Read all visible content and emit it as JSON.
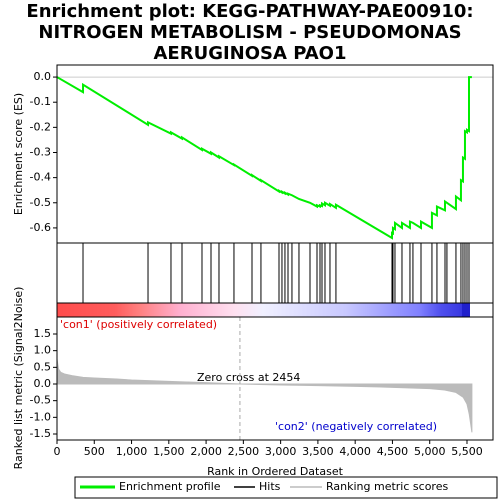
{
  "chart_data": {
    "type": "line",
    "title": [
      "Enrichment plot: KEGG-PATHWAY-PAE00910:",
      "NITROGEN METABOLISM - PSEUDOMONAS",
      "AERUGINOSA PAO1"
    ],
    "xlabel": "Rank in Ordered Dataset",
    "xlim": [
      0,
      5849
    ],
    "xticks": [
      0,
      500,
      {
        "value": 1000,
        "label": "1,000"
      },
      {
        "value": 1500,
        "label": "1,500"
      },
      {
        "value": 2000,
        "label": "2,000"
      },
      {
        "value": 2500,
        "label": "2,500"
      },
      {
        "value": 3000,
        "label": "3,000"
      },
      {
        "value": 3500,
        "label": "3,500"
      },
      {
        "value": 4000,
        "label": "4,000"
      },
      {
        "value": 4500,
        "label": "4,500"
      },
      {
        "value": 5000,
        "label": "5,000"
      },
      {
        "value": 5500,
        "label": "5,500"
      }
    ],
    "es": {
      "ylabel": "Enrichment score (ES)",
      "ylim": [
        -0.66,
        0.048
      ],
      "yticks": [
        {
          "value": 0,
          "label": "0.0"
        },
        -0.1,
        -0.2,
        -0.3,
        -0.4,
        -0.5,
        -0.6
      ],
      "color": "#00ee00",
      "x": [
        0,
        349,
        349,
        1221,
        1221,
        1529,
        1529,
        1677,
        1677,
        1945,
        1945,
        2066,
        2066,
        2173,
        2173,
        2374,
        2374,
        2616,
        2616,
        2736,
        2736,
        2978,
        2978,
        3018,
        3018,
        3058,
        3058,
        3099,
        3099,
        3152,
        3246,
        3394,
        3488,
        3488,
        3528,
        3528,
        3555,
        3555,
        3595,
        3595,
        3662,
        3662,
        3742,
        3742,
        4494,
        4494,
        4507,
        4507,
        4534,
        4534,
        4628,
        4628,
        4735,
        4735,
        4775,
        4883,
        4883,
        5030,
        5030,
        5097,
        5097,
        5205,
        5205,
        5231,
        5352,
        5352,
        5419,
        5419,
        5446,
        5446,
        5473,
        5473,
        5500,
        5500,
        5527,
        5527,
        5566
      ],
      "values": [
        0,
        -0.06,
        -0.03,
        -0.19,
        -0.18,
        -0.225,
        -0.22,
        -0.245,
        -0.24,
        -0.29,
        -0.285,
        -0.305,
        -0.3,
        -0.32,
        -0.315,
        -0.35,
        -0.348,
        -0.393,
        -0.39,
        -0.413,
        -0.41,
        -0.455,
        -0.452,
        -0.459,
        -0.456,
        -0.463,
        -0.46,
        -0.467,
        -0.464,
        -0.47,
        -0.485,
        -0.5,
        -0.515,
        -0.51,
        -0.515,
        -0.51,
        -0.513,
        -0.503,
        -0.51,
        -0.5,
        -0.512,
        -0.505,
        -0.52,
        -0.508,
        -0.64,
        -0.62,
        -0.622,
        -0.6,
        -0.605,
        -0.58,
        -0.6,
        -0.58,
        -0.6,
        -0.575,
        -0.58,
        -0.6,
        -0.575,
        -0.6,
        -0.54,
        -0.55,
        -0.515,
        -0.53,
        -0.495,
        -0.5,
        -0.525,
        -0.475,
        -0.49,
        -0.41,
        -0.415,
        -0.32,
        -0.325,
        -0.215,
        -0.22,
        -0.21,
        -0.215,
        0.0,
        0.0
      ]
    },
    "hits": [
      349,
      1221,
      1529,
      1677,
      1945,
      2066,
      2173,
      2374,
      2616,
      2736,
      2978,
      3018,
      3058,
      3099,
      3152,
      3246,
      3394,
      3488,
      3528,
      3555,
      3595,
      3662,
      3742,
      4494,
      4507,
      4534,
      4628,
      4735,
      4775,
      4883,
      5030,
      5097,
      5205,
      5231,
      5352,
      5419,
      5446,
      5473,
      5500,
      5527
    ],
    "metric": {
      "ylabel": "Ranked list metric (Signal2Noise)",
      "ylim": [
        -1.68,
        2.01
      ],
      "yticks": [
        1.5,
        {
          "value": 1,
          "label": "1.0"
        },
        0.5,
        {
          "value": 0,
          "label": "0.0"
        },
        -0.5,
        {
          "value": -1,
          "label": "-1.0"
        },
        -1.5
      ],
      "color": "#bbbbbb",
      "x": [
        0,
        20,
        50,
        100,
        200,
        350,
        500,
        800,
        1000,
        1500,
        2000,
        2454,
        3000,
        3500,
        4000,
        4500,
        5000,
        5200,
        5350,
        5450,
        5500,
        5530,
        5566
      ],
      "values": [
        0.75,
        0.45,
        0.35,
        0.3,
        0.25,
        0.2,
        0.18,
        0.15,
        0.12,
        0.08,
        0.04,
        0,
        -0.03,
        -0.05,
        -0.07,
        -0.1,
        -0.14,
        -0.18,
        -0.25,
        -0.4,
        -0.6,
        -0.9,
        -1.45
      ]
    },
    "zero_cross": 2454,
    "annotations": {
      "zero": "Zero cross at 2454",
      "pos": "'con1' (positively correlated)",
      "neg": "'con2' (negatively correlated)"
    },
    "legend": [
      "Enrichment profile",
      "Hits",
      "Ranking metric scores"
    ]
  }
}
